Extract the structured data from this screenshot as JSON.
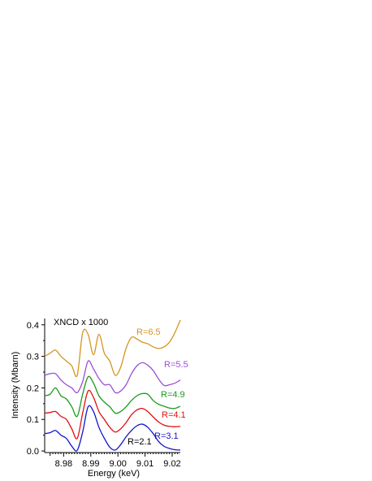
{
  "chart_data": {
    "type": "line",
    "title": "",
    "annotation": "XNCD x 1000",
    "xlabel": "Energy (keV)",
    "ylabel": "Intensity (Mbarn)",
    "xlim": [
      8.973,
      9.023
    ],
    "ylim": [
      -0.005,
      0.42
    ],
    "x_ticks": [
      "8.98",
      "8.99",
      "9.00",
      "9.01",
      "9.02"
    ],
    "y_ticks": [
      "0.0",
      "0.1",
      "0.2",
      "0.3",
      "0.4"
    ],
    "grid": false,
    "legend": "labels at right end of each curve",
    "x": [
      8.973,
      8.975,
      8.977,
      8.979,
      8.981,
      8.983,
      8.985,
      8.987,
      8.989,
      8.991,
      8.993,
      8.995,
      8.997,
      8.999,
      9.001,
      9.003,
      9.005,
      9.007,
      9.009,
      9.011,
      9.013,
      9.015,
      9.017,
      9.019,
      9.021,
      9.023
    ],
    "series": [
      {
        "name": "R=2.1",
        "color": "#1414c8",
        "values": [
          0.055,
          0.058,
          0.065,
          0.05,
          0.04,
          0.015,
          0.002,
          0.06,
          0.14,
          0.125,
          0.075,
          0.04,
          0.012,
          0.003,
          0.02,
          0.045,
          0.065,
          0.08,
          0.085,
          0.075,
          0.055,
          0.03,
          0.015,
          0.008,
          0.004,
          0.003
        ]
      },
      {
        "name": "R=3.1",
        "color": "#1414c8",
        "values": null
      },
      {
        "name": "R=4.1",
        "color": "#e01010",
        "values": [
          0.12,
          0.122,
          0.125,
          0.11,
          0.1,
          0.07,
          0.04,
          0.12,
          0.19,
          0.17,
          0.125,
          0.1,
          0.075,
          0.06,
          0.07,
          0.09,
          0.115,
          0.13,
          0.135,
          0.125,
          0.108,
          0.092,
          0.082,
          0.078,
          0.077,
          0.078
        ]
      },
      {
        "name": "R=4.9",
        "color": "#1a9a1a",
        "values": [
          0.175,
          0.18,
          0.2,
          0.175,
          0.165,
          0.14,
          0.11,
          0.18,
          0.235,
          0.215,
          0.175,
          0.155,
          0.14,
          0.12,
          0.125,
          0.14,
          0.16,
          0.175,
          0.182,
          0.18,
          0.16,
          0.148,
          0.142,
          0.136,
          0.135,
          0.142
        ]
      },
      {
        "name": "R=5.5",
        "color": "#9b4fd6",
        "values": [
          0.24,
          0.245,
          0.245,
          0.225,
          0.21,
          0.2,
          0.185,
          0.22,
          0.285,
          0.26,
          0.23,
          0.21,
          0.21,
          0.185,
          0.19,
          0.21,
          0.245,
          0.27,
          0.28,
          0.272,
          0.255,
          0.228,
          0.208,
          0.21,
          0.215,
          0.225
        ]
      },
      {
        "name": "R=6.5",
        "color": "#d49520",
        "values": [
          0.3,
          0.31,
          0.32,
          0.3,
          0.285,
          0.27,
          0.24,
          0.375,
          0.37,
          0.305,
          0.37,
          0.31,
          0.285,
          0.24,
          0.265,
          0.325,
          0.36,
          0.355,
          0.345,
          0.34,
          0.33,
          0.325,
          0.33,
          0.345,
          0.375,
          0.415
        ]
      }
    ]
  }
}
